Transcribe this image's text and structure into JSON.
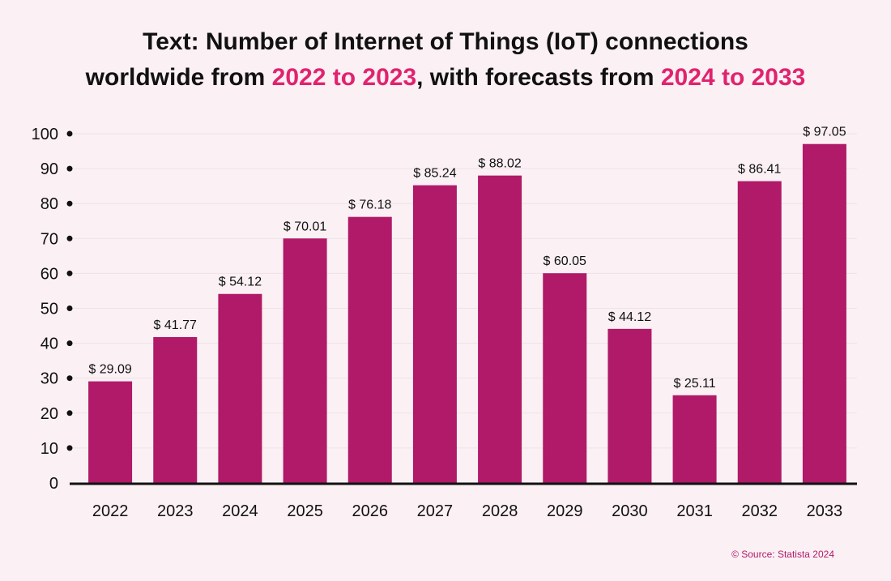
{
  "title": {
    "line1": "Text: Number of Internet of Things (IoT) connections",
    "line2_pre": "worldwide from ",
    "line2_hl1": "2022 to 2023",
    "line2_mid": ", with forecasts from ",
    "line2_hl2": "2024 to 2033"
  },
  "source": "© Source: Statista 2024",
  "colors": {
    "bar": "#b01a68",
    "highlight": "#e0236f",
    "background": "#fbf0f4",
    "grid": "#eee3e8"
  },
  "chart_data": {
    "type": "bar",
    "title": "Text: Number of Internet of Things (IoT) connections worldwide from 2022 to 2023, with forecasts from 2024 to 2033",
    "categories": [
      "2022",
      "2023",
      "2024",
      "2025",
      "2026",
      "2027",
      "2028",
      "2029",
      "2030",
      "2031",
      "2032",
      "2033"
    ],
    "values": [
      29.09,
      41.77,
      54.12,
      70.01,
      76.18,
      85.24,
      88.02,
      60.05,
      44.12,
      25.11,
      86.41,
      97.05
    ],
    "value_labels": [
      "$ 29.09",
      "$ 41.77",
      "$ 54.12",
      "$ 70.01",
      "$ 76.18",
      "$ 85.24",
      "$ 88.02",
      "$ 60.05",
      "$ 44.12",
      "$ 25.11",
      "$ 86.41",
      "$ 97.05"
    ],
    "yticks": [
      "0",
      "10",
      "20",
      "30",
      "40",
      "50",
      "60",
      "70",
      "80",
      "90",
      "100"
    ],
    "ylim": [
      0,
      100
    ],
    "xlabel": "",
    "ylabel": "",
    "grid": true,
    "legend": "none"
  }
}
